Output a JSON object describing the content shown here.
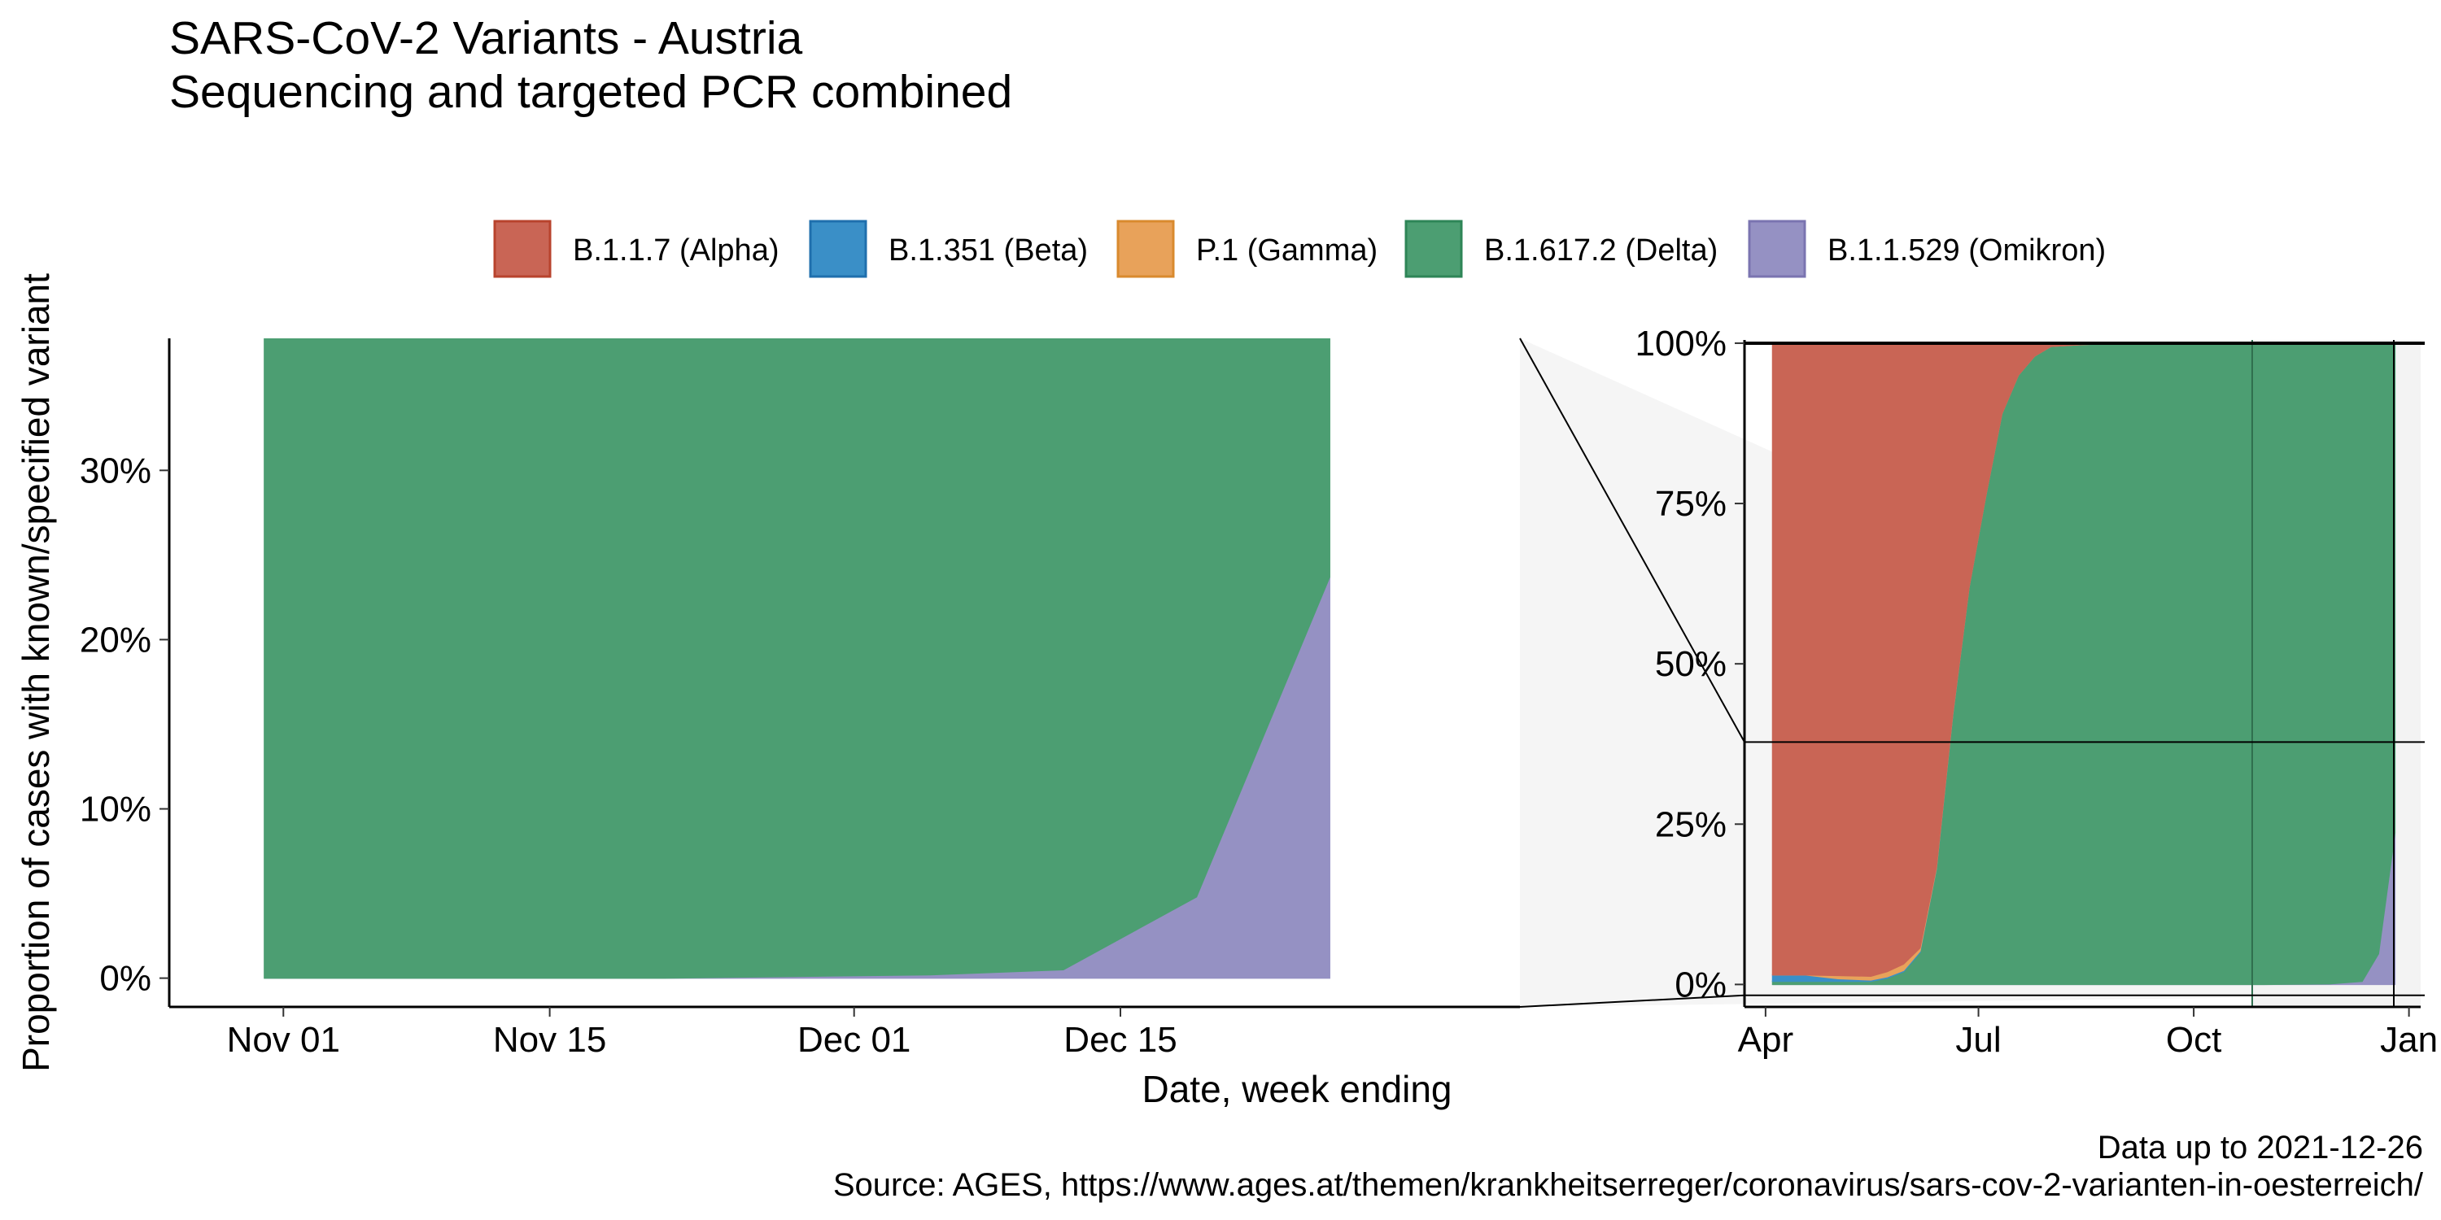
{
  "title": "SARS-CoV-2 Variants - Austria",
  "subtitle": "Sequencing and targeted PCR combined",
  "caption_line1": "Data up to 2021-12-26",
  "caption_line2": "Source: AGES, https://www.ages.at/themen/krankheitserreger/coronavirus/sars-cov-2-varianten-in-oesterreich/",
  "chart_data": [
    {
      "type": "area",
      "panel": "main (zoomed)",
      "xlabel": "Date, week ending",
      "ylabel": "Proportion of cases with known/specified variant",
      "xlim": [
        "2021-10-26",
        "2022-01-05"
      ],
      "ylim": [
        -0.017,
        0.378
      ],
      "x_ticks": [
        "Nov 01",
        "Nov 15",
        "Dec 01",
        "Dec 15"
      ],
      "x_tick_dates": [
        "2021-11-01",
        "2021-11-15",
        "2021-12-01",
        "2021-12-15"
      ],
      "y_ticks": [
        "0%",
        "10%",
        "20%",
        "30%"
      ],
      "y_tick_values": [
        0,
        0.1,
        0.2,
        0.3
      ],
      "stack_order_bottom_to_top": [
        "B.1.1.529 (Omikron)",
        "B.1.617.2 (Delta)"
      ],
      "x": [
        "2021-10-31",
        "2021-11-07",
        "2021-11-14",
        "2021-11-21",
        "2021-11-28",
        "2021-12-05",
        "2021-12-12",
        "2021-12-19",
        "2021-12-26"
      ],
      "series": [
        {
          "name": "B.1.1.529 (Omikron)",
          "color": "#9591C3",
          "values": [
            0.0,
            0.0,
            0.0,
            0.0,
            0.001,
            0.002,
            0.005,
            0.048,
            0.237
          ]
        },
        {
          "name": "B.1.617.2 (Delta)",
          "color": "#4C9E72",
          "values": [
            1.0,
            1.0,
            1.0,
            1.0,
            0.999,
            0.998,
            0.995,
            0.952,
            0.763
          ]
        }
      ]
    },
    {
      "type": "area",
      "panel": "inset (overview)",
      "xlim": [
        "2021-03-23",
        "2022-01-06"
      ],
      "ylim": [
        -0.035,
        1.005
      ],
      "x_ticks": [
        "Apr",
        "Jul",
        "Oct",
        "Jan"
      ],
      "x_tick_dates": [
        "2021-04-01",
        "2021-07-01",
        "2021-10-01",
        "2022-01-01"
      ],
      "y_ticks": [
        "0%",
        "25%",
        "50%",
        "75%",
        "100%"
      ],
      "y_tick_values": [
        0,
        0.25,
        0.5,
        0.75,
        1.0
      ],
      "highlight_range": [
        "2021-10-26",
        "2022-01-05"
      ],
      "stack_order_bottom_to_top": [
        "B.1.1.529 (Omikron)",
        "B.1.617.2 (Delta)",
        "B.1.351 (Beta)",
        "P.1 (Gamma)",
        "B.1.1.7 (Alpha)"
      ],
      "x": [
        "2021-04-04",
        "2021-04-18",
        "2021-05-02",
        "2021-05-16",
        "2021-05-23",
        "2021-05-30",
        "2021-06-06",
        "2021-06-13",
        "2021-06-20",
        "2021-06-27",
        "2021-07-04",
        "2021-07-11",
        "2021-07-18",
        "2021-07-25",
        "2021-08-01",
        "2021-08-15",
        "2021-09-05",
        "2021-10-03",
        "2021-10-31",
        "2021-11-28",
        "2021-12-12",
        "2021-12-19",
        "2021-12-26"
      ],
      "series": [
        {
          "name": "B.1.1.529 (Omikron)",
          "color": "#9591C3",
          "values": [
            0,
            0,
            0,
            0,
            0,
            0,
            0,
            0,
            0,
            0,
            0,
            0,
            0,
            0,
            0,
            0,
            0,
            0,
            0,
            0.001,
            0.005,
            0.048,
            0.237
          ]
        },
        {
          "name": "B.1.617.2 (Delta)",
          "color": "#4C9E72",
          "values": [
            0.005,
            0.005,
            0.005,
            0.005,
            0.01,
            0.02,
            0.05,
            0.18,
            0.42,
            0.62,
            0.76,
            0.89,
            0.95,
            0.98,
            0.995,
            0.998,
            1.0,
            1.0,
            1.0,
            0.999,
            0.995,
            0.952,
            0.763
          ]
        },
        {
          "name": "B.1.351 (Beta)",
          "color": "#3A8FC7",
          "values": [
            0.01,
            0.01,
            0.004,
            0.002,
            0.002,
            0.002,
            0.002,
            0.001,
            0.001,
            0,
            0,
            0,
            0,
            0,
            0,
            0,
            0,
            0,
            0,
            0,
            0,
            0,
            0
          ]
        },
        {
          "name": "P.1 (Gamma)",
          "color": "#E8A25A",
          "values": [
            0,
            0,
            0.005,
            0.006,
            0.008,
            0.01,
            0.005,
            0.002,
            0.001,
            0,
            0,
            0,
            0,
            0,
            0,
            0,
            0,
            0,
            0,
            0,
            0,
            0,
            0
          ]
        },
        {
          "name": "B.1.1.7 (Alpha)",
          "color": "#C96555",
          "values": [
            0.985,
            0.985,
            0.986,
            0.987,
            0.98,
            0.968,
            0.943,
            0.817,
            0.578,
            0.38,
            0.24,
            0.11,
            0.05,
            0.02,
            0.005,
            0.002,
            0,
            0,
            0,
            0,
            0,
            0,
            0
          ]
        }
      ]
    }
  ],
  "legend": [
    {
      "label": "B.1.1.7 (Alpha)",
      "color": "#C96555",
      "border": "#B8432D"
    },
    {
      "label": "B.1.351 (Beta)",
      "color": "#3A8FC7",
      "border": "#1F6FAD"
    },
    {
      "label": "P.1 (Gamma)",
      "color": "#E8A25A",
      "border": "#D98A2E"
    },
    {
      "label": "B.1.617.2 (Delta)",
      "color": "#4C9E72",
      "border": "#2E8557"
    },
    {
      "label": "B.1.1.529 (Omikron)",
      "color": "#9591C3",
      "border": "#7A74B0"
    }
  ]
}
